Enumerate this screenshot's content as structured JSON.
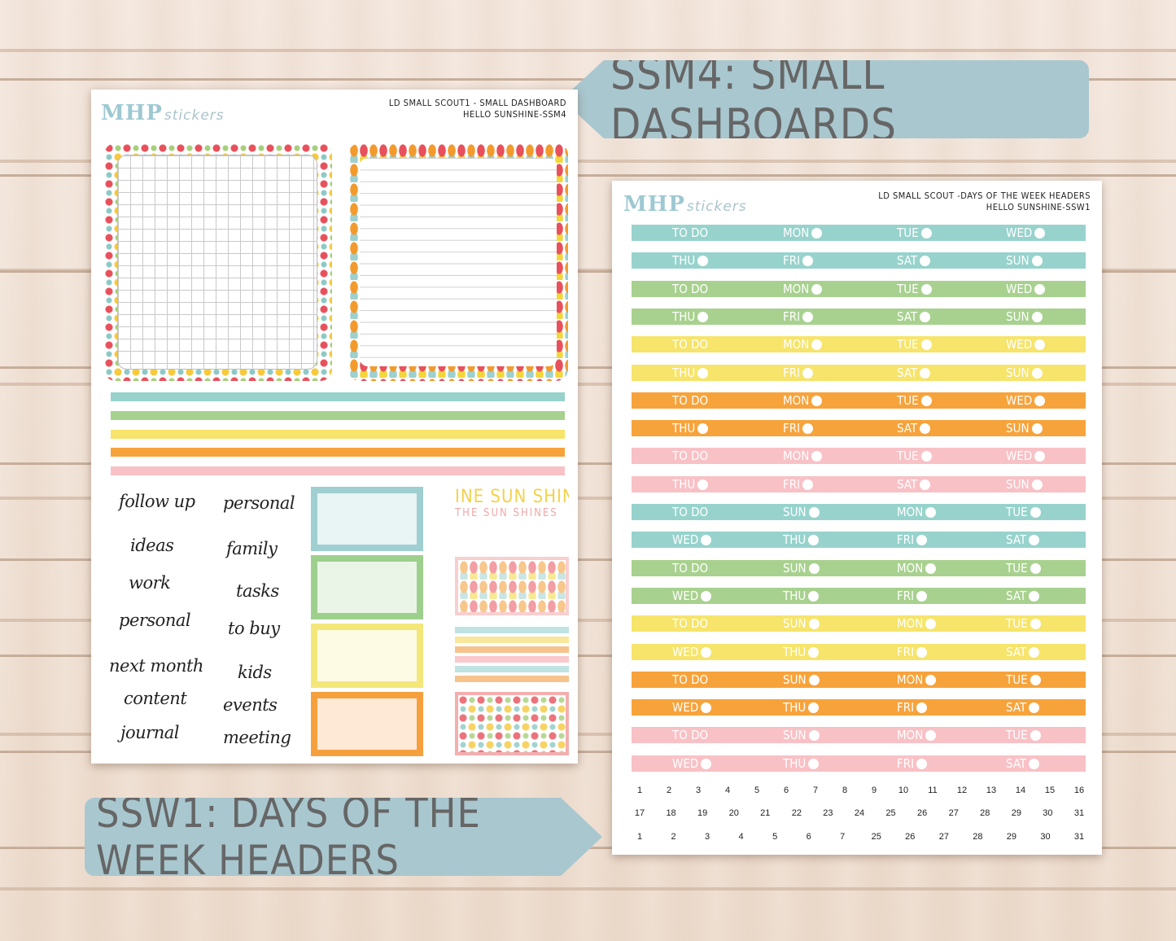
{
  "banners": {
    "top": "SSM4: SMALL DASHBOARDS",
    "bottom": "SSW1: DAYS OF THE WEEK HEADERS"
  },
  "sheet1": {
    "logo_main": "MHP",
    "logo_sub": "stickers",
    "title_line1": "LD SMALL SCOUT1 - SMALL DASHBOARD",
    "title_line2": "HELLO SUNSHINE-SSM4",
    "strip_colors": [
      "#97d3cc",
      "#a8d18f",
      "#f6e46b",
      "#f7a33b",
      "#f8c1c6"
    ],
    "words_left": [
      "follow up",
      "ideas",
      "work",
      "personal",
      "next month",
      "content",
      "journal"
    ],
    "words_right": [
      "personal",
      "family",
      "tasks",
      "to buy",
      "kids",
      "events",
      "meeting"
    ],
    "boxes": [
      {
        "border": "#9fcfd0",
        "fill": "#e9f4f5"
      },
      {
        "border": "#9dd08c",
        "fill": "#ebf5e7"
      },
      {
        "border": "#f4e77a",
        "fill": "#fdfbe3"
      },
      {
        "border": "#f5a03d",
        "fill": "#fde9d6"
      }
    ],
    "deco_text_1": "INE SUN SHINES",
    "deco_text_2": "THE SUN SHINES"
  },
  "sheet2": {
    "logo_main": "MHP",
    "logo_sub": "stickers",
    "title_line1": "LD SMALL SCOUT -DAYS OF THE WEEK HEADERS",
    "title_line2": "HELLO SUNSHINE-SSW1",
    "rows": [
      {
        "color": "#97d3cc",
        "cells": [
          "TO DO",
          "MON",
          "TUE",
          "WED"
        ],
        "dots": [
          false,
          true,
          true,
          true
        ]
      },
      {
        "color": "#97d3cc",
        "cells": [
          "THU",
          "FRI",
          "SAT",
          "SUN"
        ],
        "dots": [
          true,
          true,
          true,
          true
        ]
      },
      {
        "color": "#a8d18f",
        "cells": [
          "TO DO",
          "MON",
          "TUE",
          "WED"
        ],
        "dots": [
          false,
          true,
          true,
          true
        ]
      },
      {
        "color": "#a8d18f",
        "cells": [
          "THU",
          "FRI",
          "SAT",
          "SUN"
        ],
        "dots": [
          true,
          true,
          true,
          true
        ]
      },
      {
        "color": "#f6e46b",
        "cells": [
          "TO DO",
          "MON",
          "TUE",
          "WED"
        ],
        "dots": [
          false,
          true,
          true,
          true
        ]
      },
      {
        "color": "#f6e46b",
        "cells": [
          "THU",
          "FRI",
          "SAT",
          "SUN"
        ],
        "dots": [
          true,
          true,
          true,
          true
        ]
      },
      {
        "color": "#f7a33b",
        "cells": [
          "TO DO",
          "MON",
          "TUE",
          "WED"
        ],
        "dots": [
          false,
          true,
          true,
          true
        ]
      },
      {
        "color": "#f7a33b",
        "cells": [
          "THU",
          "FRI",
          "SAT",
          "SUN"
        ],
        "dots": [
          true,
          true,
          true,
          true
        ]
      },
      {
        "color": "#f8c1c6",
        "cells": [
          "TO DO",
          "MON",
          "TUE",
          "WED"
        ],
        "dots": [
          false,
          true,
          true,
          true
        ]
      },
      {
        "color": "#f8c1c6",
        "cells": [
          "THU",
          "FRI",
          "SAT",
          "SUN"
        ],
        "dots": [
          true,
          true,
          true,
          true
        ]
      },
      {
        "color": "#97d3cc",
        "cells": [
          "TO DO",
          "SUN",
          "MON",
          "TUE"
        ],
        "dots": [
          false,
          true,
          true,
          true
        ]
      },
      {
        "color": "#97d3cc",
        "cells": [
          "WED",
          "THU",
          "FRI",
          "SAT"
        ],
        "dots": [
          true,
          true,
          true,
          true
        ]
      },
      {
        "color": "#a8d18f",
        "cells": [
          "TO DO",
          "SUN",
          "MON",
          "TUE"
        ],
        "dots": [
          false,
          true,
          true,
          true
        ]
      },
      {
        "color": "#a8d18f",
        "cells": [
          "WED",
          "THU",
          "FRI",
          "SAT"
        ],
        "dots": [
          true,
          true,
          true,
          true
        ]
      },
      {
        "color": "#f6e46b",
        "cells": [
          "TO DO",
          "SUN",
          "MON",
          "TUE"
        ],
        "dots": [
          false,
          true,
          true,
          true
        ]
      },
      {
        "color": "#f6e46b",
        "cells": [
          "WED",
          "THU",
          "FRI",
          "SAT"
        ],
        "dots": [
          true,
          true,
          true,
          true
        ]
      },
      {
        "color": "#f7a33b",
        "cells": [
          "TO DO",
          "SUN",
          "MON",
          "TUE"
        ],
        "dots": [
          false,
          true,
          true,
          true
        ]
      },
      {
        "color": "#f7a33b",
        "cells": [
          "WED",
          "THU",
          "FRI",
          "SAT"
        ],
        "dots": [
          true,
          true,
          true,
          true
        ]
      },
      {
        "color": "#f8c1c6",
        "cells": [
          "TO DO",
          "SUN",
          "MON",
          "TUE"
        ],
        "dots": [
          false,
          true,
          true,
          true
        ]
      },
      {
        "color": "#f8c1c6",
        "cells": [
          "WED",
          "THU",
          "FRI",
          "SAT"
        ],
        "dots": [
          true,
          true,
          true,
          true
        ]
      }
    ],
    "number_rows": [
      [
        "1",
        "2",
        "3",
        "4",
        "5",
        "6",
        "7",
        "8",
        "9",
        "10",
        "11",
        "12",
        "13",
        "14",
        "15",
        "16"
      ],
      [
        "17",
        "18",
        "19",
        "20",
        "21",
        "22",
        "23",
        "24",
        "25",
        "26",
        "27",
        "28",
        "29",
        "30",
        "31"
      ],
      [
        "1",
        "2",
        "3",
        "4",
        "5",
        "6",
        "7",
        "25",
        "26",
        "27",
        "28",
        "29",
        "30",
        "31"
      ]
    ]
  }
}
